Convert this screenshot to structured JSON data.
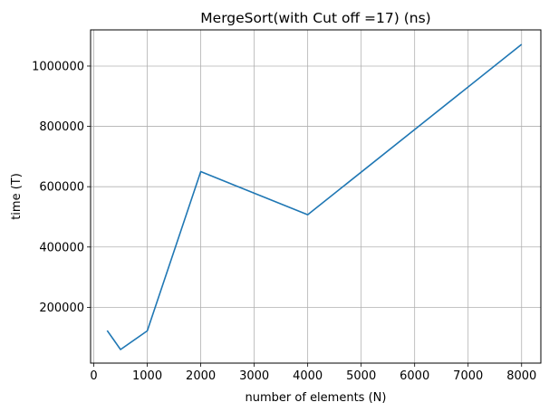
{
  "chart_data": {
    "type": "line",
    "title": "MergeSort(with Cut off =17) (ns)",
    "xlabel": "number of elements (N)",
    "ylabel": "time (T)",
    "x": [
      250,
      500,
      1000,
      2000,
      4000,
      8000
    ],
    "series": [
      {
        "values": [
          123000,
          60000,
          122000,
          650000,
          507000,
          1072000
        ],
        "color": "#1f77b4"
      }
    ],
    "xlim": [
      -60,
      8360
    ],
    "ylim": [
      15000,
      1120000
    ],
    "xticks": [
      0,
      1000,
      2000,
      3000,
      4000,
      5000,
      6000,
      7000,
      8000
    ],
    "yticks": [
      200000,
      400000,
      600000,
      800000,
      1000000
    ],
    "grid": true,
    "legend": "none"
  }
}
